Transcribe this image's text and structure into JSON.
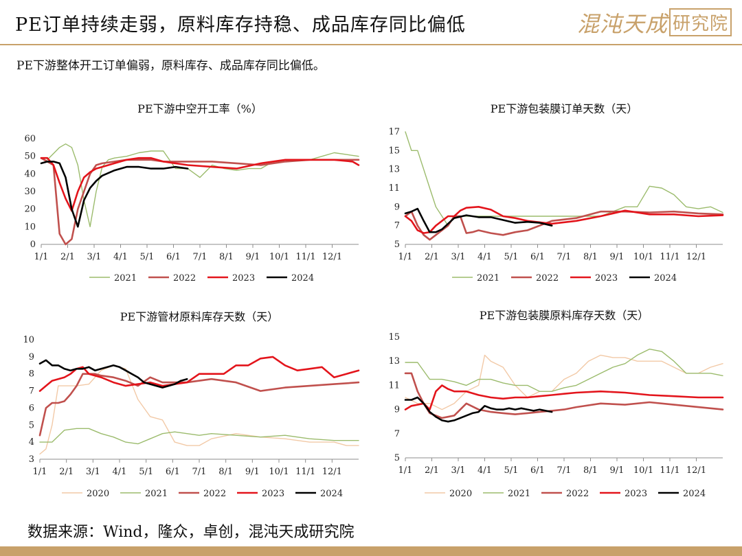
{
  "header": {
    "title": "PE订单持续走弱，原料库存持稳、成品库存同比偏低",
    "logo_text": "混沌天成",
    "logo_stamp": "研究院"
  },
  "subtitle": "PE下游整体开工订单偏弱，原料库存、成品库存同比偏低。",
  "source": "数据来源：Wind，隆众，卓创，混沌天成研究院",
  "colors": {
    "2020": "#f2c9a6",
    "2021": "#9bbb6c",
    "2022": "#c0504d",
    "2023": "#e3141b",
    "2024": "#000000",
    "accent": "#c8a16a"
  },
  "chart_data": [
    {
      "type": "line",
      "title": "PE下游中空开工率（%）",
      "ylim": [
        0,
        60
      ],
      "yticks": [
        0,
        10,
        20,
        30,
        40,
        50,
        60
      ],
      "x_tick_labels": [
        "1/1",
        "2/1",
        "3/1",
        "4/1",
        "5/1",
        "6/1",
        "7/1",
        "8/1",
        "9/1",
        "10/1",
        "11/1",
        "12/1"
      ],
      "grid": false,
      "legend_position": "bottom",
      "series": [
        {
          "name": "2021",
          "x": [
            1,
            3,
            4,
            5,
            6,
            7,
            8,
            9,
            10,
            11,
            12,
            14,
            16,
            18,
            20,
            22,
            24,
            26,
            28,
            30,
            32,
            34,
            36,
            38,
            40,
            42,
            44,
            46,
            48,
            50,
            52
          ],
          "values": [
            48,
            55,
            57,
            55,
            45,
            25,
            10,
            30,
            44,
            48,
            49,
            50,
            52,
            53,
            53,
            43,
            43,
            38,
            45,
            43,
            42,
            43,
            43,
            47,
            47,
            48,
            48,
            50,
            52,
            51,
            50
          ]
        },
        {
          "name": "2022",
          "x": [
            0,
            1,
            2,
            3,
            4,
            5,
            6,
            7,
            8,
            9,
            10,
            12,
            14,
            16,
            18,
            20,
            24,
            28,
            32,
            36,
            40,
            44,
            48,
            52
          ],
          "values": [
            49,
            47,
            45,
            6,
            0,
            3,
            20,
            30,
            40,
            45,
            46,
            47,
            48,
            48,
            48,
            47,
            47,
            47,
            46,
            45,
            47,
            48,
            48,
            48
          ]
        },
        {
          "name": "2023",
          "x": [
            0,
            1,
            2,
            3,
            4,
            5,
            6,
            7,
            8,
            9,
            10,
            12,
            14,
            16,
            18,
            20,
            24,
            28,
            32,
            36,
            40,
            44,
            48,
            51,
            52
          ],
          "values": [
            49,
            49,
            45,
            35,
            26,
            19,
            30,
            38,
            41,
            43,
            44,
            46,
            48,
            49,
            49,
            47,
            45,
            44,
            43,
            46,
            48,
            48,
            48,
            47,
            45
          ]
        },
        {
          "name": "2024",
          "x": [
            0,
            1,
            2,
            3,
            4,
            5,
            6,
            7,
            8,
            9,
            10,
            12,
            14,
            16,
            18,
            20,
            22,
            24
          ],
          "values": [
            46,
            47,
            47,
            46,
            38,
            20,
            10,
            25,
            32,
            36,
            39,
            42,
            44,
            44,
            43,
            43,
            44,
            43
          ]
        }
      ]
    },
    {
      "type": "line",
      "title": "PE下游包装膜订单天数（天）",
      "ylim": [
        5,
        17
      ],
      "yticks": [
        5,
        7,
        9,
        11,
        13,
        15,
        17
      ],
      "x_tick_labels": [
        "1/1",
        "2/1",
        "3/1",
        "4/1",
        "5/1",
        "6/1",
        "7/1",
        "8/1",
        "9/1",
        "10/1",
        "11/1",
        "12/1"
      ],
      "grid": false,
      "legend_position": "bottom",
      "series": [
        {
          "name": "2021",
          "x": [
            0,
            1,
            2,
            3,
            4,
            5,
            6,
            7,
            8,
            10,
            12,
            14,
            16,
            20,
            24,
            28,
            32,
            34,
            36,
            38,
            40,
            42,
            44,
            46,
            48,
            50,
            52
          ],
          "values": [
            17,
            15,
            15,
            13,
            11,
            9,
            8,
            7,
            8,
            8,
            8,
            8,
            8,
            8,
            8,
            8,
            8,
            8.5,
            9,
            9,
            11.2,
            11,
            10.3,
            9,
            8.8,
            9,
            8.4
          ]
        },
        {
          "name": "2022",
          "x": [
            0,
            1,
            2,
            3,
            4,
            5,
            6,
            7,
            8,
            9,
            10,
            11,
            12,
            14,
            16,
            18,
            20,
            24,
            28,
            32,
            36,
            40,
            44,
            48,
            52
          ],
          "values": [
            8,
            8.5,
            7,
            6,
            5.5,
            6,
            6.5,
            7,
            8,
            8,
            6.2,
            6.3,
            6.5,
            6.2,
            6,
            6.3,
            6.5,
            7.5,
            7.8,
            8.5,
            8.5,
            8.4,
            8.5,
            8.3,
            8.2
          ]
        },
        {
          "name": "2023",
          "x": [
            0,
            1,
            2,
            3,
            4,
            5,
            6,
            7,
            8,
            9,
            10,
            12,
            14,
            16,
            18,
            20,
            24,
            28,
            32,
            36,
            40,
            44,
            48,
            52
          ],
          "values": [
            8,
            7.5,
            6.5,
            6.2,
            6.3,
            7,
            7.5,
            8,
            8,
            8.6,
            8.9,
            9,
            8.7,
            8,
            7.8,
            7.5,
            7.2,
            7.5,
            8,
            8.6,
            8.2,
            8.2,
            8,
            8.1
          ]
        },
        {
          "name": "2024",
          "x": [
            0,
            1,
            2,
            3,
            4,
            5,
            6,
            7,
            8,
            10,
            12,
            14,
            16,
            18,
            20,
            22,
            24
          ],
          "values": [
            8.3,
            8.5,
            8.8,
            7.5,
            6.3,
            6.3,
            6.6,
            7.2,
            7.8,
            8.1,
            7.9,
            7.9,
            7.6,
            7.3,
            7.4,
            7.3,
            7
          ]
        }
      ]
    },
    {
      "type": "line",
      "title": "PE下游管材原料库存天数（天）",
      "ylim": [
        3,
        10
      ],
      "yticks": [
        3,
        4,
        5,
        6,
        7,
        8,
        9,
        10
      ],
      "x_tick_labels": [
        "1/1",
        "2/1",
        "3/1",
        "4/1",
        "5/1",
        "6/1",
        "7/1",
        "8/1",
        "9/1",
        "10/1",
        "11/1",
        "12/1"
      ],
      "grid": false,
      "legend_position": "bottom",
      "series": [
        {
          "name": "2020",
          "x": [
            0,
            1,
            2,
            3,
            4,
            5,
            6,
            8,
            10,
            12,
            14,
            16,
            18,
            20,
            22,
            24,
            26,
            28,
            32,
            36,
            40,
            44,
            48,
            50,
            52
          ],
          "values": [
            3.3,
            3.6,
            5,
            7.3,
            7.3,
            7.3,
            7.3,
            7.4,
            8.2,
            8.5,
            8.3,
            6.5,
            5.5,
            5.3,
            4,
            3.8,
            3.8,
            4.2,
            4.5,
            4.3,
            4.2,
            4,
            4,
            3.8,
            3.8
          ]
        },
        {
          "name": "2021",
          "x": [
            0,
            2,
            4,
            6,
            8,
            10,
            12,
            14,
            16,
            18,
            20,
            22,
            24,
            26,
            28,
            32,
            36,
            40,
            44,
            48,
            52
          ],
          "values": [
            4,
            4,
            4.7,
            4.8,
            4.8,
            4.5,
            4.3,
            4,
            3.9,
            4.2,
            4.5,
            4.6,
            4.5,
            4.4,
            4.5,
            4.4,
            4.3,
            4.4,
            4.2,
            4.1,
            4.1
          ]
        },
        {
          "name": "2022",
          "x": [
            0,
            1,
            2,
            3,
            4,
            5,
            6,
            7,
            8,
            9,
            10,
            12,
            14,
            16,
            18,
            20,
            24,
            28,
            32,
            36,
            40,
            44,
            48,
            52
          ],
          "values": [
            4.4,
            6,
            6.3,
            6.3,
            6.4,
            6.8,
            7.3,
            8,
            8,
            8,
            7.9,
            7.8,
            7.6,
            7.3,
            7.8,
            7.5,
            7.5,
            7.7,
            7.5,
            7,
            7.2,
            7.3,
            7.4,
            7.5
          ]
        },
        {
          "name": "2023",
          "x": [
            0,
            1,
            2,
            3,
            4,
            5,
            6,
            7,
            8,
            9,
            10,
            12,
            14,
            16,
            18,
            20,
            22,
            24,
            26,
            28,
            30,
            32,
            34,
            36,
            38,
            40,
            42,
            44,
            46,
            48,
            50,
            52
          ],
          "values": [
            7,
            7.3,
            7.6,
            7.7,
            7.8,
            8,
            8.3,
            8.4,
            8,
            7.9,
            7.8,
            7.5,
            7.3,
            7.4,
            7.5,
            7.3,
            7.4,
            7.5,
            8,
            8,
            8,
            8.5,
            8.5,
            8.9,
            9,
            8.5,
            8.2,
            8.3,
            8.4,
            7.8,
            8,
            8.2
          ]
        },
        {
          "name": "2024",
          "x": [
            0,
            1,
            2,
            3,
            4,
            5,
            6,
            7,
            8,
            9,
            10,
            11,
            12,
            13,
            14,
            15,
            16,
            17,
            18,
            19,
            20,
            21,
            22,
            23,
            24
          ],
          "values": [
            8.6,
            8.8,
            8.5,
            8.5,
            8.3,
            8.2,
            8.3,
            8.3,
            8.4,
            8.2,
            8.3,
            8.4,
            8.5,
            8.4,
            8.2,
            8.0,
            7.8,
            7.5,
            7.4,
            7.3,
            7.2,
            7.3,
            7.4,
            7.6,
            7.7
          ]
        }
      ]
    },
    {
      "type": "line",
      "title": "PE下游包装膜原料库存天数（天）",
      "ylim": [
        5,
        15
      ],
      "yticks": [
        5,
        7,
        9,
        11,
        13,
        15
      ],
      "x_tick_labels": [
        "1/1",
        "2/1",
        "3/1",
        "4/1",
        "5/1",
        "6/1",
        "7/1",
        "8/1",
        "9/1",
        "10/1",
        "11/1",
        "12/1"
      ],
      "grid": false,
      "legend_position": "bottom",
      "series": [
        {
          "name": "2020",
          "x": [
            0,
            2,
            4,
            6,
            8,
            10,
            12,
            13,
            14,
            16,
            18,
            20,
            22,
            24,
            26,
            28,
            30,
            32,
            34,
            36,
            38,
            40,
            42,
            44,
            46,
            48,
            50,
            52
          ],
          "values": [
            10,
            9.5,
            9.5,
            9,
            9.5,
            10.5,
            11,
            13.5,
            13,
            12.5,
            11,
            10,
            10.5,
            10.5,
            11.5,
            12,
            13,
            13.5,
            13.3,
            13.3,
            13,
            13,
            13,
            12.5,
            12,
            12,
            12.5,
            12.8
          ]
        },
        {
          "name": "2021",
          "x": [
            0,
            2,
            4,
            6,
            8,
            10,
            12,
            14,
            16,
            18,
            20,
            22,
            24,
            26,
            28,
            30,
            32,
            34,
            36,
            38,
            40,
            42,
            44,
            46,
            48,
            50,
            52
          ],
          "values": [
            12.9,
            12.9,
            11.5,
            11.5,
            11.3,
            11,
            11.5,
            11.5,
            11.2,
            11,
            11,
            10.5,
            10.5,
            10.8,
            11,
            11.5,
            12,
            12.5,
            12.8,
            13.5,
            14,
            13.8,
            13,
            12,
            12,
            12,
            11.8
          ]
        },
        {
          "name": "2022",
          "x": [
            0,
            1,
            2,
            3,
            4,
            5,
            6,
            7,
            8,
            10,
            12,
            14,
            16,
            18,
            20,
            22,
            24,
            26,
            28,
            32,
            36,
            40,
            44,
            48,
            52
          ],
          "values": [
            12,
            12,
            10.5,
            9.5,
            8.7,
            8.5,
            8.3,
            8.4,
            8.5,
            9.5,
            9,
            8.8,
            8.7,
            8.6,
            8.7,
            8.8,
            8.9,
            9,
            9.2,
            9.5,
            9.4,
            9.6,
            9.4,
            9.2,
            9
          ]
        },
        {
          "name": "2023",
          "x": [
            0,
            1,
            2,
            3,
            4,
            5,
            6,
            7,
            8,
            10,
            12,
            14,
            16,
            18,
            20,
            22,
            24,
            26,
            28,
            32,
            36,
            40,
            44,
            48,
            52
          ],
          "values": [
            9,
            9.3,
            9.4,
            9.5,
            9,
            10.5,
            11,
            10.7,
            10.5,
            10.5,
            10.2,
            10,
            9.9,
            10,
            10,
            10.1,
            10.2,
            10.3,
            10.4,
            10.5,
            10.4,
            10.2,
            10.1,
            10,
            10
          ]
        },
        {
          "name": "2024",
          "x": [
            0,
            1,
            2,
            3,
            4,
            5,
            6,
            7,
            8,
            9,
            10,
            11,
            12,
            13,
            14,
            15,
            16,
            17,
            18,
            19,
            20,
            21,
            22,
            23,
            24
          ],
          "values": [
            9.8,
            9.8,
            10,
            9.5,
            8.8,
            8.4,
            8.1,
            8,
            8.1,
            8.3,
            8.5,
            8.7,
            8.8,
            9.3,
            9.1,
            9,
            9,
            9.1,
            9,
            9.1,
            9,
            8.9,
            9,
            8.9,
            8.8
          ]
        }
      ]
    }
  ]
}
